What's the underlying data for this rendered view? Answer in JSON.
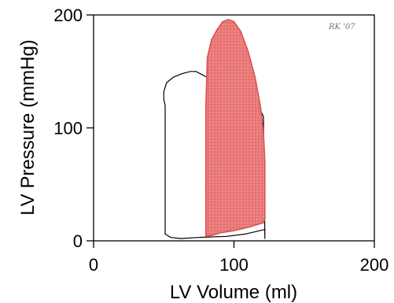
{
  "chart_data": {
    "type": "line",
    "title": "",
    "xlabel": "LV  Volume (ml)",
    "ylabel": "LV  Pressure (mmHg)",
    "xlim": [
      0,
      200
    ],
    "ylim": [
      0,
      200
    ],
    "xticks": [
      "0",
      "100",
      "200"
    ],
    "yticks": [
      "0",
      "100",
      "200"
    ],
    "grid": false,
    "legend": "none",
    "signature": "RK '07",
    "series": [
      {
        "color": "#000000",
        "fill": "none",
        "points": [
          [
            122,
            2
          ],
          [
            121,
            110
          ],
          [
            118,
            118
          ],
          [
            112,
            124
          ],
          [
            100,
            132
          ],
          [
            88,
            140
          ],
          [
            79,
            146
          ],
          [
            73,
            150
          ],
          [
            69,
            150
          ],
          [
            63,
            148
          ],
          [
            57,
            145
          ],
          [
            52,
            140
          ],
          [
            50,
            132
          ],
          [
            50,
            125
          ],
          [
            51,
            120
          ],
          [
            51,
            100
          ],
          [
            51,
            6
          ],
          [
            55,
            3
          ],
          [
            62,
            2
          ],
          [
            75,
            3
          ],
          [
            95,
            4
          ],
          [
            108,
            6
          ],
          [
            122,
            10
          ]
        ]
      },
      {
        "color": "#d9534f",
        "fill": "#ec7c7c",
        "points": [
          [
            80,
            4
          ],
          [
            80,
            120
          ],
          [
            81,
            162
          ],
          [
            84,
            178
          ],
          [
            88,
            187
          ],
          [
            92,
            194
          ],
          [
            96,
            196
          ],
          [
            100,
            194
          ],
          [
            105,
            185
          ],
          [
            110,
            168
          ],
          [
            115,
            145
          ],
          [
            119,
            118
          ],
          [
            121,
            96
          ],
          [
            122,
            70
          ],
          [
            122,
            20
          ],
          [
            121,
            16
          ],
          [
            110,
            12
          ],
          [
            100,
            9
          ],
          [
            90,
            7
          ],
          [
            85,
            5
          ],
          [
            80,
            4
          ]
        ]
      }
    ]
  }
}
